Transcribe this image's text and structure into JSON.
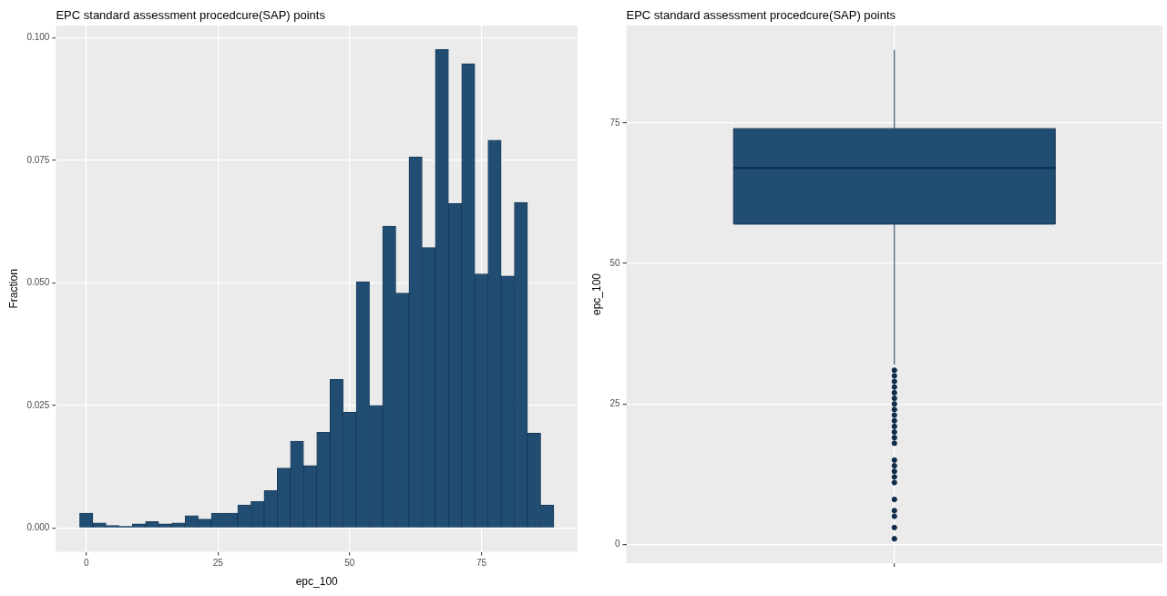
{
  "chart_data": [
    {
      "type": "histogram",
      "title": "EPC standard assessment procedcure(SAP) points",
      "xlabel": "epc_100",
      "ylabel": "Fraction",
      "color": "#214d72",
      "bins": [
        -1.25,
        1.25,
        3.75,
        6.25,
        8.75,
        11.25,
        13.75,
        16.25,
        18.75,
        21.25,
        23.75,
        26.25,
        28.75,
        31.25,
        33.75,
        36.25,
        38.75,
        41.25,
        43.75,
        46.25,
        48.75,
        51.25,
        53.75,
        56.25,
        58.75,
        61.25,
        63.75,
        66.25,
        68.75,
        71.25,
        73.75,
        76.25,
        78.75,
        81.25,
        83.75,
        86.25,
        88.75
      ],
      "values": [
        0.003,
        0.001,
        0.0005,
        0.0003,
        0.0008,
        0.0013,
        0.0008,
        0.001,
        0.0025,
        0.0018,
        0.003,
        0.003,
        0.0047,
        0.0054,
        0.0076,
        0.0122,
        0.0177,
        0.0127,
        0.0195,
        0.0303,
        0.0236,
        0.0502,
        0.025,
        0.0616,
        0.0479,
        0.0757,
        0.0572,
        0.0976,
        0.0662,
        0.0947,
        0.0518,
        0.0791,
        0.0514,
        0.0664,
        0.0193,
        0.0047
      ],
      "xlim": [
        -5.75,
        93.25
      ],
      "xticks": [
        0,
        25,
        50,
        75
      ],
      "ylim": [
        -0.0049,
        0.1025
      ],
      "yticks": [
        {
          "value": 0,
          "label": "0.000"
        },
        0.025,
        {
          "value": 0.05,
          "label": "0.050"
        },
        0.075,
        {
          "value": 0.1,
          "label": "0.100"
        }
      ],
      "grid": true
    },
    {
      "type": "box",
      "title": "EPC standard assessment procedcure(SAP) points",
      "ylabel": "epc_100",
      "color": "#214d72",
      "categories": [
        null
      ],
      "boxes": [
        {
          "low": 32,
          "q1": 57,
          "median": 67,
          "q3": 74,
          "high": 88,
          "outliers": [
            31,
            30,
            29,
            28,
            27,
            26,
            25,
            24,
            23,
            22,
            21,
            20,
            19,
            18,
            15,
            14,
            13,
            12,
            11,
            8,
            6,
            5,
            3,
            1
          ]
        }
      ],
      "ylim": [
        -3.35,
        92.35
      ],
      "yticks": [
        0,
        25,
        50,
        75
      ],
      "tick_labels": "y",
      "grid": true
    }
  ]
}
